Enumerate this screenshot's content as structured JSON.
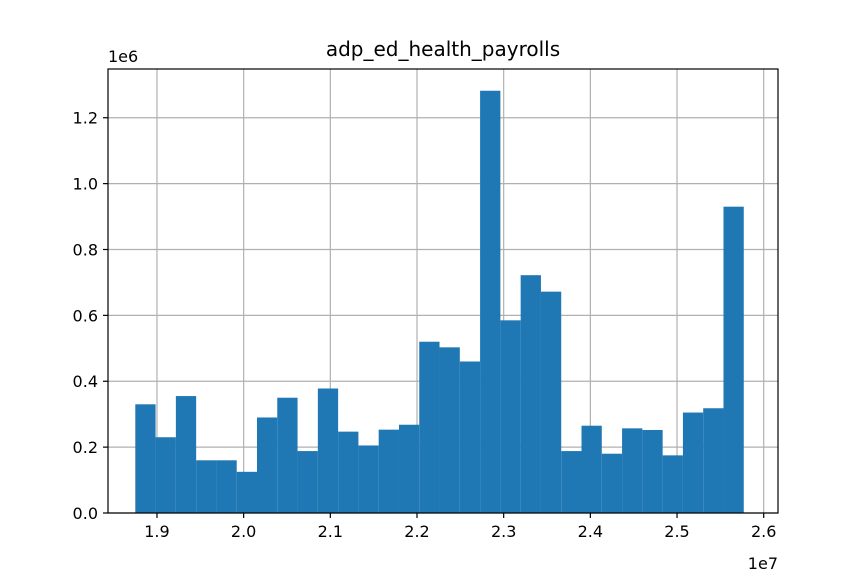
{
  "chart_data": {
    "type": "bar",
    "title": "adp_ed_health_payrolls",
    "xlabel": "",
    "ylabel": "",
    "x_offset_label": "1e7",
    "y_offset_label": "1e6",
    "xlim": [
      18435000,
      26165000
    ],
    "ylim": [
      0,
      1348000
    ],
    "x_ticks": [
      {
        "value": 19000000,
        "label": "1.9"
      },
      {
        "value": 20000000,
        "label": "2.0"
      },
      {
        "value": 21000000,
        "label": "2.1"
      },
      {
        "value": 22000000,
        "label": "2.2"
      },
      {
        "value": 23000000,
        "label": "2.3"
      },
      {
        "value": 24000000,
        "label": "2.4"
      },
      {
        "value": 25000000,
        "label": "2.5"
      },
      {
        "value": 26000000,
        "label": "2.6"
      }
    ],
    "y_ticks": [
      {
        "value": 0,
        "label": "0.0"
      },
      {
        "value": 200000,
        "label": "0.2"
      },
      {
        "value": 400000,
        "label": "0.4"
      },
      {
        "value": 600000,
        "label": "0.6"
      },
      {
        "value": 800000,
        "label": "0.8"
      },
      {
        "value": 1000000,
        "label": "1.0"
      },
      {
        "value": 1200000,
        "label": "1.2"
      }
    ],
    "grid": true,
    "bar_color": "#1f77b4",
    "bin_edges": [
      18750000,
      18984000,
      19218000,
      19452000,
      19686000,
      19920000,
      20154000,
      20388000,
      20622000,
      20856000,
      21090000,
      21324000,
      21558000,
      21792000,
      22026000,
      22260000,
      22494000,
      22728000,
      22962000,
      23196000,
      23430000,
      23664000,
      23898000,
      24132000,
      24366000,
      24600000,
      24834000,
      25068000,
      25302000,
      25536000,
      25770000
    ],
    "values": [
      330000,
      230000,
      355000,
      160000,
      160000,
      125000,
      290000,
      350000,
      188000,
      378000,
      247000,
      205000,
      253000,
      268000,
      520000,
      503000,
      460000,
      1282000,
      585000,
      722000,
      672000,
      188000,
      265000,
      180000,
      257000,
      252000,
      175000,
      305000,
      318000,
      930000
    ]
  }
}
